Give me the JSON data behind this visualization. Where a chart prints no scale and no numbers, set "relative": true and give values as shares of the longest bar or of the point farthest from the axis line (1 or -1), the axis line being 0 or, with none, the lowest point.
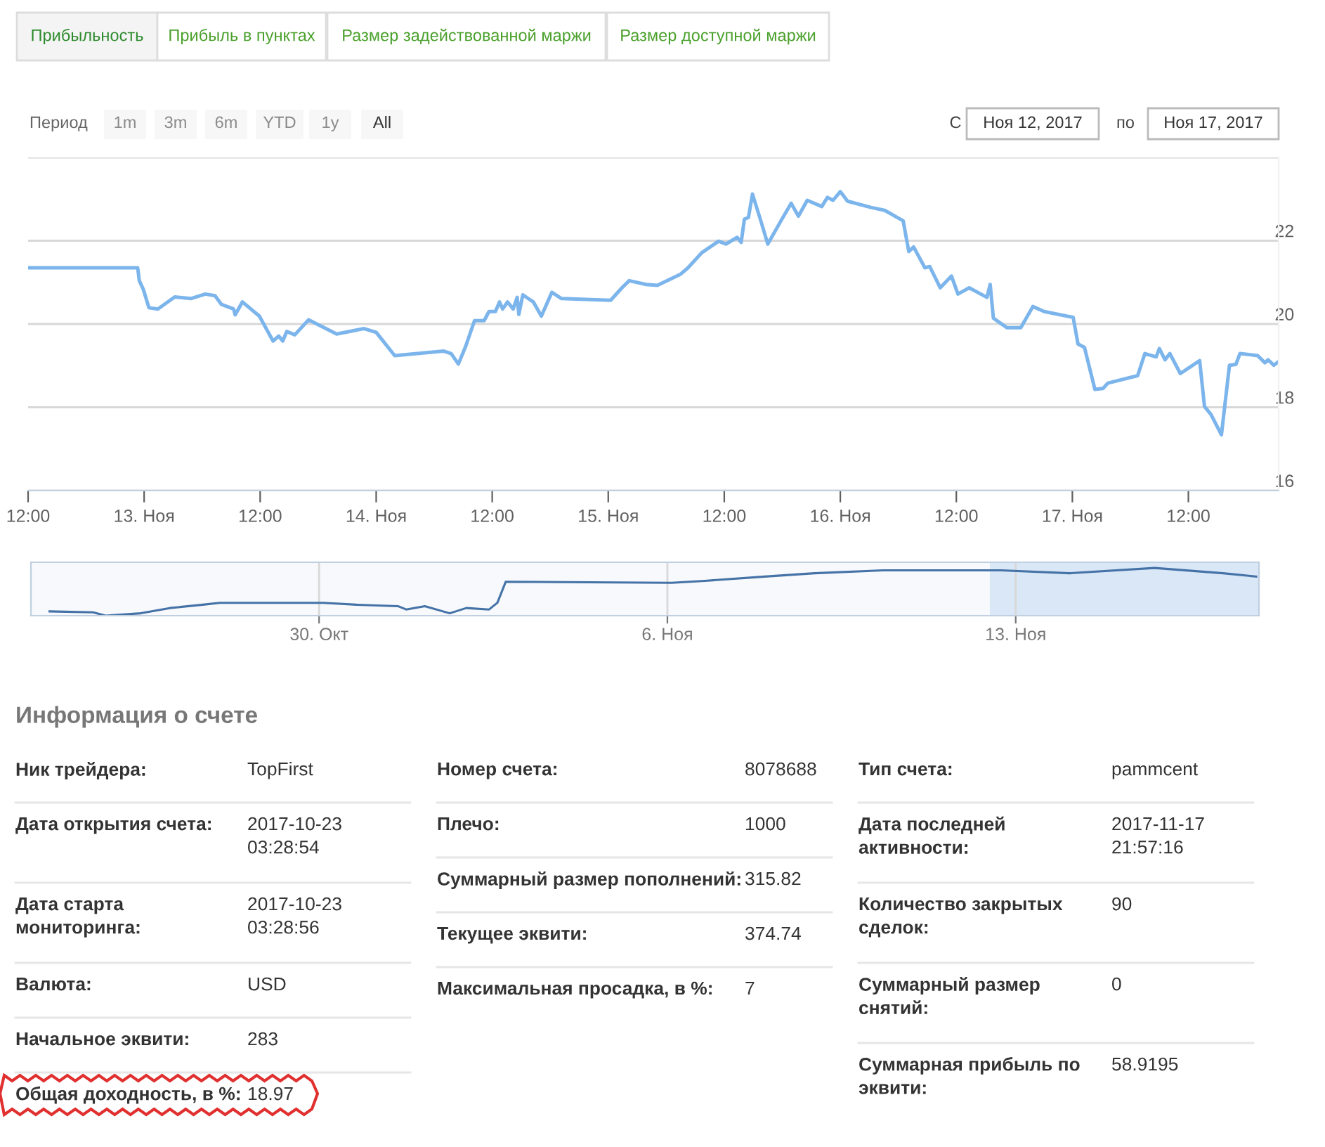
{
  "chart_data": [
    {
      "type": "line",
      "grid": "y",
      "marker": "none",
      "line_style": "solid",
      "annotations": [
        "Прибыльность",
        "Прибыль в пунктах",
        "Размер задействованной маржи",
        "Размер доступной маржи",
        "Период",
        "1m",
        "3m",
        "6m",
        "YTD",
        "1y",
        "All",
        "С",
        "Ноя 12, 2017",
        "по",
        "Ноя 17, 2017"
      ],
      "xlim": [
        "2017-11-12T12:00",
        "2017-11-17T21:20"
      ],
      "xticks": [
        {
          "value": "2017-11-12T12:00",
          "label": "12:00"
        },
        {
          "value": "2017-11-13",
          "label": "13. Ноя"
        },
        {
          "value": "2017-11-13T12:00",
          "label": "12:00"
        },
        {
          "value": "2017-11-14",
          "label": "14. Ноя"
        },
        {
          "value": "2017-11-14T12:00",
          "label": "12:00"
        },
        {
          "value": "2017-11-15",
          "label": "15. Ноя"
        },
        {
          "value": "2017-11-15T12:00",
          "label": "12:00"
        },
        {
          "value": "2017-11-16",
          "label": "16. Ноя"
        },
        {
          "value": "2017-11-16T12:00",
          "label": "12:00"
        },
        {
          "value": "2017-11-17",
          "label": "17. Ноя"
        },
        {
          "value": "2017-11-17T12:00",
          "label": "12:00"
        }
      ],
      "ylim": [
        16,
        24
      ],
      "yticks": [
        16,
        18,
        20,
        22,
        {
          "value": 24,
          "label": null
        }
      ],
      "series": [
        {
          "color": "#7cb5ec",
          "x": [
            "2017-11-12T12:00",
            "2017-11-12T23:20",
            "2017-11-12T23:30",
            "2017-11-12T23:55",
            "2017-11-13T00:30",
            "2017-11-13T01:25",
            "2017-11-13T03:10",
            "2017-11-13T04:50",
            "2017-11-13T06:20",
            "2017-11-13T07:20",
            "2017-11-13T08:00",
            "2017-11-13T09:15",
            "2017-11-13T09:25",
            "2017-11-13T10:10",
            "2017-11-13T11:55",
            "2017-11-13T13:20",
            "2017-11-13T13:55",
            "2017-11-13T14:20",
            "2017-11-13T14:45",
            "2017-11-13T15:35",
            "2017-11-13T17:00",
            "2017-11-13T19:55",
            "2017-11-13T22:45",
            "2017-11-14T00:00",
            "2017-11-14T01:55",
            "2017-11-14T07:00",
            "2017-11-14T07:45",
            "2017-11-14T08:30",
            "2017-11-14T09:15",
            "2017-11-14T10:10",
            "2017-11-14T11:10",
            "2017-11-14T11:40",
            "2017-11-14T12:20",
            "2017-11-14T12:45",
            "2017-11-14T13:05",
            "2017-11-14T13:35",
            "2017-11-14T14:10",
            "2017-11-14T14:35",
            "2017-11-14T14:45",
            "2017-11-14T15:10",
            "2017-11-14T16:15",
            "2017-11-14T17:05",
            "2017-11-14T18:10",
            "2017-11-14T19:10",
            "2017-11-15T00:15",
            "2017-11-15T01:25",
            "2017-11-15T02:10",
            "2017-11-15T03:55",
            "2017-11-15T05:05",
            "2017-11-15T07:30",
            "2017-11-15T08:15",
            "2017-11-15T09:40",
            "2017-11-15T11:25",
            "2017-11-15T12:10",
            "2017-11-15T13:20",
            "2017-11-15T13:45",
            "2017-11-15T14:05",
            "2017-11-15T14:30",
            "2017-11-15T14:55",
            "2017-11-15T15:45",
            "2017-11-15T16:30",
            "2017-11-15T17:55",
            "2017-11-15T18:55",
            "2017-11-15T19:40",
            "2017-11-15T20:35",
            "2017-11-15T22:05",
            "2017-11-15T22:40",
            "2017-11-15T23:15",
            "2017-11-16T00:00",
            "2017-11-16T00:45",
            "2017-11-16T03:10",
            "2017-11-16T04:35",
            "2017-11-16T06:30",
            "2017-11-16T07:05",
            "2017-11-16T07:35",
            "2017-11-16T08:45",
            "2017-11-16T09:15",
            "2017-11-16T10:20",
            "2017-11-16T11:30",
            "2017-11-16T12:10",
            "2017-11-16T13:20",
            "2017-11-16T15:10",
            "2017-11-16T15:30",
            "2017-11-16T15:50",
            "2017-11-16T17:15",
            "2017-11-16T18:40",
            "2017-11-16T19:55",
            "2017-11-16T21:05",
            "2017-11-17T00:05",
            "2017-11-17T00:35",
            "2017-11-17T01:15",
            "2017-11-17T02:20",
            "2017-11-17T03:10",
            "2017-11-17T03:40",
            "2017-11-17T06:45",
            "2017-11-17T07:30",
            "2017-11-17T08:40",
            "2017-11-17T09:00",
            "2017-11-17T09:35",
            "2017-11-17T10:05",
            "2017-11-17T11:10",
            "2017-11-17T13:10",
            "2017-11-17T13:40",
            "2017-11-17T14:20",
            "2017-11-17T15:25",
            "2017-11-17T16:15",
            "2017-11-17T16:55",
            "2017-11-17T17:20",
            "2017-11-17T19:10",
            "2017-11-17T19:55",
            "2017-11-17T20:15",
            "2017-11-17T20:50",
            "2017-11-17T21:20"
          ],
          "values": [
            21.35,
            21.35,
            21.04,
            20.83,
            20.39,
            20.36,
            20.65,
            20.61,
            20.72,
            20.68,
            20.47,
            20.36,
            20.22,
            20.53,
            20.19,
            19.59,
            19.71,
            19.59,
            19.82,
            19.74,
            20.1,
            19.76,
            19.89,
            19.8,
            19.24,
            19.35,
            19.29,
            19.04,
            19.46,
            20.08,
            20.08,
            20.3,
            20.3,
            20.53,
            20.36,
            20.53,
            20.36,
            20.64,
            20.23,
            20.7,
            20.53,
            20.19,
            20.76,
            20.61,
            20.57,
            20.87,
            21.04,
            20.95,
            20.93,
            21.2,
            21.35,
            21.71,
            21.99,
            21.92,
            22.08,
            21.96,
            22.52,
            22.56,
            23.12,
            22.5,
            21.92,
            22.5,
            22.9,
            22.59,
            22.97,
            22.82,
            23.04,
            22.97,
            23.18,
            22.95,
            22.8,
            22.73,
            22.48,
            21.74,
            21.85,
            21.35,
            21.38,
            20.87,
            21.15,
            20.72,
            20.87,
            20.64,
            20.95,
            20.14,
            19.91,
            19.91,
            20.42,
            20.3,
            20.16,
            19.52,
            19.44,
            18.43,
            18.45,
            18.58,
            18.76,
            19.29,
            19.21,
            19.41,
            19.14,
            19.29,
            18.81,
            19.12,
            18.02,
            17.83,
            17.34,
            19.01,
            19.03,
            19.29,
            19.24,
            19.07,
            19.14,
            19.01,
            19.1
          ]
        }
      ]
    },
    {
      "type": "line",
      "relative": true,
      "grid": "x",
      "marker": "none",
      "xlim": [
        "2017-10-24T05:00",
        "2017-11-17T21:20"
      ],
      "xticks": [
        {
          "value": "2017-10-30",
          "label": "30. Окт"
        },
        {
          "value": "2017-11-06",
          "label": "6. Ноя"
        },
        {
          "value": "2017-11-13",
          "label": "13. Ноя"
        }
      ],
      "bands": [
        {
          "axis": "x",
          "from": "2017-11-12T12:00",
          "to": "2017-11-17T21:20",
          "color": "#cfe0f5"
        }
      ],
      "series": [
        {
          "color": "#4572a7",
          "x": [
            "2017-10-24T14:00",
            "2017-10-25T11:00",
            "2017-10-25T17:00",
            "2017-10-26T10:00",
            "2017-10-27T00:00",
            "2017-10-27T16:00",
            "2017-10-28T00:00",
            "2017-10-30T02:00",
            "2017-10-30T18:00",
            "2017-10-31T14:00",
            "2017-10-31T18:00",
            "2017-11-01T03:00",
            "2017-11-01T15:00",
            "2017-11-01T23:00",
            "2017-11-02T10:00",
            "2017-11-02T14:00",
            "2017-11-02T18:00",
            "2017-11-06T02:00",
            "2017-11-06T18:00",
            "2017-11-07T23:00",
            "2017-11-08T23:00",
            "2017-11-10T08:00",
            "2017-11-12T17:00",
            "2017-11-14T02:00",
            "2017-11-15T19:00",
            "2017-11-17T04:00",
            "2017-11-17T20:00"
          ],
          "values": [
            0.09,
            0.07,
            0,
            0.05,
            0.16,
            0.23,
            0.27,
            0.27,
            0.23,
            0.2,
            0.13,
            0.2,
            0.05,
            0.16,
            0.13,
            0.27,
            0.71,
            0.69,
            0.73,
            0.82,
            0.89,
            0.95,
            0.95,
            0.89,
            1,
            0.89,
            0.82
          ]
        }
      ]
    },
    {
      "type": "other",
      "title": "Информация о счете",
      "annotations": [
        "Ник трейдера:",
        "TopFirst",
        "Дата открытия счета:",
        "2017-10-23\n03:28:54",
        "Дата старта\nмониторинга:",
        "2017-10-23\n03:28:56",
        "Валюта:",
        "USD",
        "Начальное эквити:",
        "283",
        "Общая доходность, в %:",
        "18.97",
        "Номер счета:",
        "8078688",
        "Плечо:",
        "1000",
        "Суммарный размер пополнений:",
        "315.82",
        "Текущее эквити:",
        "374.74",
        "Максимальная просадка, в %:",
        "7",
        "Тип счета:",
        "pammcent",
        "Дата последней\nактивности:",
        "2017-11-17\n21:57:16",
        "Количество закрытых\nсделок:",
        "90",
        "Суммарный размер\nснятий:",
        "0",
        "Суммарная прибыль по\nэквити:",
        "58.9195"
      ]
    }
  ]
}
